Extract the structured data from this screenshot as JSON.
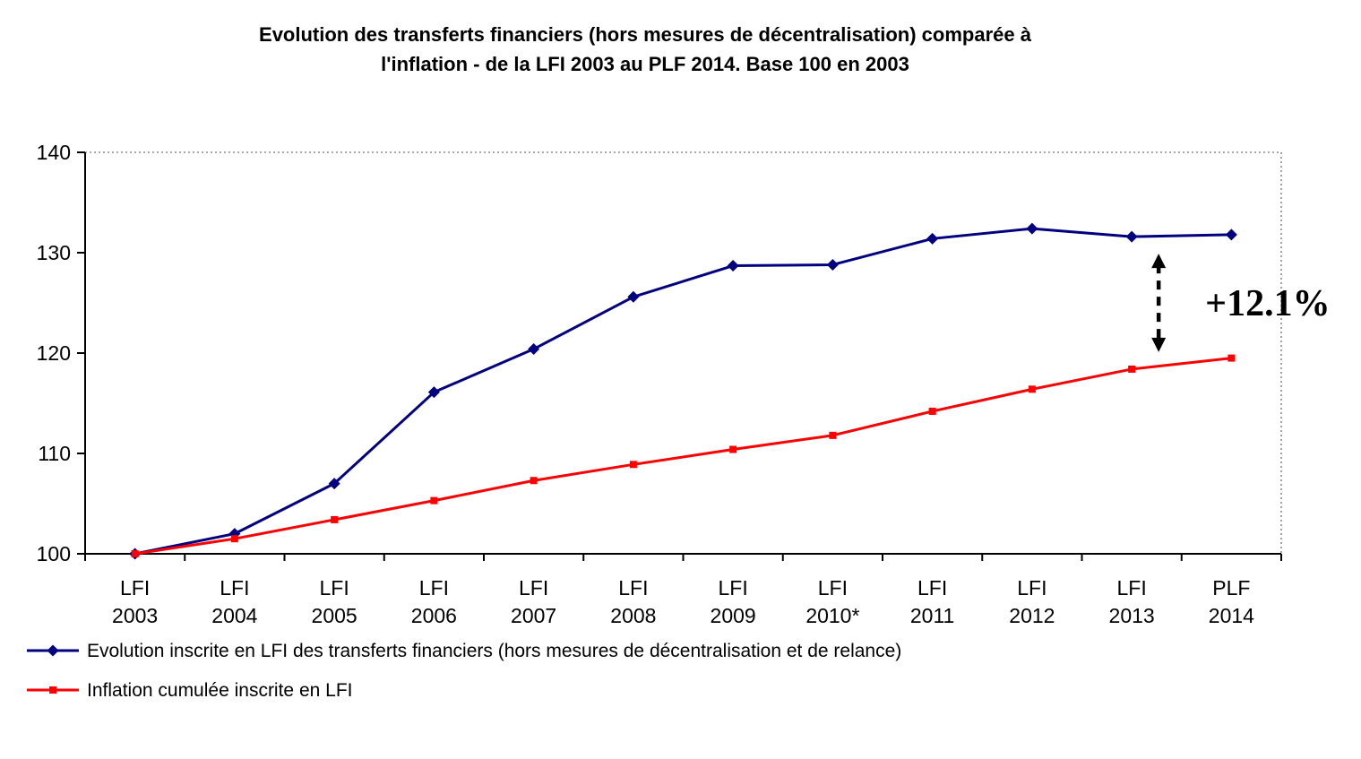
{
  "title": {
    "line1": "Evolution des transferts financiers (hors mesures de décentralisation) comparée à",
    "line2": "l'inflation - de la LFI 2003 au PLF 2014. Base 100 en 2003"
  },
  "chart_data": {
    "type": "line",
    "categories": [
      "LFI 2003",
      "LFI 2004",
      "LFI 2005",
      "LFI 2006",
      "LFI 2007",
      "LFI 2008",
      "LFI 2009",
      "LFI 2010*",
      "LFI 2011",
      "LFI 2012",
      "LFI 2013",
      "PLF 2014"
    ],
    "category_labels": [
      [
        "LFI",
        "2003"
      ],
      [
        "LFI",
        "2004"
      ],
      [
        "LFI",
        "2005"
      ],
      [
        "LFI",
        "2006"
      ],
      [
        "LFI",
        "2007"
      ],
      [
        "LFI",
        "2008"
      ],
      [
        "LFI",
        "2009"
      ],
      [
        "LFI",
        "2010*"
      ],
      [
        "LFI",
        "2011"
      ],
      [
        "LFI",
        "2012"
      ],
      [
        "LFI",
        "2013"
      ],
      [
        "PLF",
        "2014"
      ]
    ],
    "ylim": [
      100,
      140
    ],
    "yticks": [
      100,
      110,
      120,
      130,
      140
    ],
    "grid": "top-and-right-dotted-border",
    "legend_position": "bottom-left",
    "series": [
      {
        "name": "Evolution inscrite en LFI des transferts financiers (hors mesures de décentralisation et de relance)",
        "color": "#000080",
        "marker": "diamond",
        "values": [
          100,
          102,
          107,
          116.1,
          120.4,
          125.6,
          128.7,
          128.8,
          131.4,
          132.4,
          131.6,
          131.8
        ]
      },
      {
        "name": "Inflation cumulée inscrite en LFI",
        "color": "#ff0000",
        "marker": "square",
        "values": [
          100,
          101.5,
          103.4,
          105.3,
          107.3,
          108.9,
          110.4,
          111.8,
          114.2,
          116.4,
          118.4,
          119.5
        ]
      }
    ],
    "annotation": {
      "label": "+12.1%",
      "arrow": {
        "x_index": 10.27,
        "value_top": 129.9,
        "value_bottom": 120.1
      }
    }
  }
}
